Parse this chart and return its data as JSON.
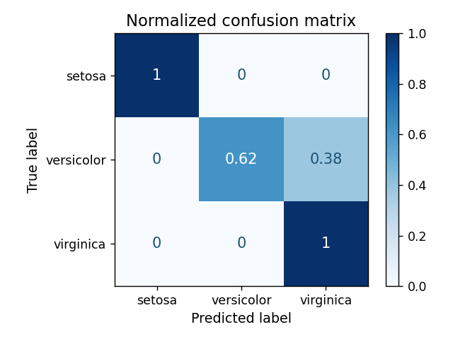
{
  "title": "Normalized confusion matrix",
  "matrix": [
    [
      1,
      0,
      0
    ],
    [
      0,
      0.62,
      0.38
    ],
    [
      0,
      0,
      1
    ]
  ],
  "classes": [
    "setosa",
    "versicolor",
    "virginica"
  ],
  "xlabel": "Predicted label",
  "ylabel": "True label",
  "cmap": "Blues",
  "vmin": 0.0,
  "vmax": 1.0,
  "colorbar_ticks": [
    0.0,
    0.2,
    0.4,
    0.6,
    0.8,
    1.0
  ],
  "text_color_threshold": 0.5,
  "title_fontsize": 13,
  "label_fontsize": 11,
  "tick_fontsize": 10,
  "text_fontsize": 12,
  "fig_width": 5.12,
  "fig_height": 3.84,
  "dpi": 125
}
